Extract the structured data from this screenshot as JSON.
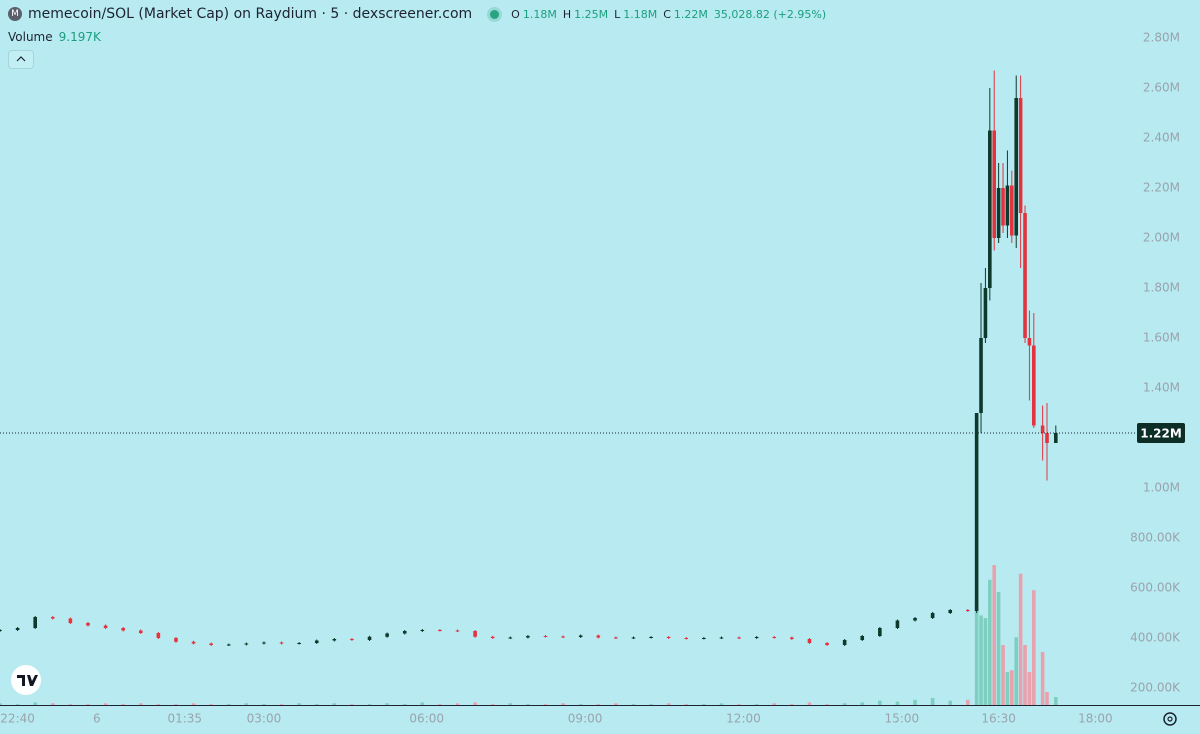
{
  "chart_data": {
    "type": "candlestick",
    "title": "memecoin/SOL (Market Cap) on Raydium · 5 · dexscreener.com",
    "icon_letter": "M",
    "legend": {
      "open_label": "O",
      "open": "1.18M",
      "high_label": "H",
      "high": "1.25M",
      "low_label": "L",
      "low": "1.18M",
      "close_label": "C",
      "close": "1.22M",
      "change": "35,028.82 (+2.95%)"
    },
    "volume_label": "Volume",
    "volume_value": "9.197K",
    "up_color": "#0d3a2c",
    "down_color": "#e2333f",
    "volume_up_color": "#7dcfbf",
    "volume_down_color": "#e7a2ad",
    "last_price": {
      "value": 1220000,
      "label": "1.22M"
    },
    "ylim": [
      132000,
      2952000
    ],
    "yticks": [
      {
        "value": 2800000,
        "label": "2.80M"
      },
      {
        "value": 2600000,
        "label": "2.60M"
      },
      {
        "value": 2400000,
        "label": "2.40M"
      },
      {
        "value": 2200000,
        "label": "2.20M"
      },
      {
        "value": 2000000,
        "label": "2.00M"
      },
      {
        "value": 1800000,
        "label": "1.80M"
      },
      {
        "value": 1600000,
        "label": "1.60M"
      },
      {
        "value": 1400000,
        "label": "1.40M"
      },
      {
        "value": 1000000,
        "label": "1.00M"
      },
      {
        "value": 800000,
        "label": "800.00K"
      },
      {
        "value": 600000,
        "label": "600.00K"
      },
      {
        "value": 400000,
        "label": "400.00K"
      },
      {
        "value": 200000,
        "label": "200.00K"
      }
    ],
    "y2lim": [
      0,
      230000
    ],
    "xlim": [
      0,
      258
    ],
    "xticks": [
      {
        "value": 4,
        "label": "22:40"
      },
      {
        "value": 22,
        "label": "6"
      },
      {
        "value": 42,
        "label": "01:35"
      },
      {
        "value": 60,
        "label": "03:00"
      },
      {
        "value": 97,
        "label": "06:00"
      },
      {
        "value": 133,
        "label": "09:00"
      },
      {
        "value": 169,
        "label": "12:00"
      },
      {
        "value": 205,
        "label": "15:00"
      },
      {
        "value": 227,
        "label": "16:30"
      },
      {
        "value": 249,
        "label": "18:00"
      }
    ],
    "x": [
      0,
      4,
      8,
      12,
      16,
      20,
      24,
      28,
      32,
      36,
      40,
      44,
      48,
      52,
      56,
      60,
      64,
      68,
      72,
      76,
      80,
      84,
      88,
      92,
      96,
      100,
      104,
      108,
      112,
      116,
      120,
      124,
      128,
      132,
      136,
      140,
      144,
      148,
      152,
      156,
      160,
      164,
      168,
      172,
      176,
      180,
      184,
      188,
      192,
      196,
      200,
      204,
      208,
      212,
      216,
      220,
      222,
      223,
      224,
      225,
      226,
      227,
      228,
      229,
      230,
      231,
      232,
      233,
      234,
      235,
      237,
      238,
      240
    ],
    "open": [
      428000,
      432000,
      440000,
      484000,
      478000,
      460000,
      450000,
      440000,
      430000,
      420000,
      400000,
      385000,
      378000,
      372000,
      374000,
      378000,
      382000,
      378000,
      380000,
      390000,
      396000,
      392000,
      405000,
      418000,
      428000,
      432000,
      430000,
      428000,
      405000,
      400000,
      402000,
      408000,
      406000,
      404000,
      410000,
      402000,
      400000,
      402000,
      404000,
      400000,
      398000,
      400000,
      402000,
      400000,
      404000,
      402000,
      396000,
      380000,
      372000,
      392000,
      408000,
      440000,
      470000,
      480000,
      500000,
      512000,
      508000,
      1300000,
      1600000,
      1800000,
      2430000,
      2000000,
      2200000,
      2050000,
      2210000,
      2010000,
      2560000,
      2100000,
      1600000,
      1570000,
      1250000,
      1220000,
      1180000
    ],
    "high": [
      436000,
      444000,
      488000,
      488000,
      482000,
      464000,
      454000,
      444000,
      434000,
      424000,
      404000,
      389000,
      382000,
      378000,
      382000,
      386000,
      386000,
      384000,
      394000,
      400000,
      400000,
      409000,
      422000,
      432000,
      436000,
      436000,
      434000,
      432000,
      409000,
      406000,
      412000,
      412000,
      410000,
      414000,
      414000,
      406000,
      406000,
      408000,
      408000,
      404000,
      404000,
      406000,
      406000,
      408000,
      408000,
      406000,
      400000,
      384000,
      396000,
      412000,
      444000,
      474000,
      484000,
      504000,
      516000,
      516000,
      1300000,
      1820000,
      1880000,
      2600000,
      2670000,
      2300000,
      2300000,
      2350000,
      2270000,
      2650000,
      2650000,
      2130000,
      1710000,
      1700000,
      1330000,
      1340000,
      1250000
    ],
    "low": [
      424000,
      428000,
      436000,
      474000,
      456000,
      446000,
      436000,
      426000,
      416000,
      396000,
      381000,
      374000,
      368000,
      368000,
      370000,
      374000,
      374000,
      374000,
      376000,
      386000,
      388000,
      388000,
      401000,
      414000,
      424000,
      426000,
      424000,
      401000,
      396000,
      396000,
      398000,
      402000,
      400000,
      400000,
      398000,
      396000,
      396000,
      398000,
      396000,
      394000,
      394000,
      396000,
      396000,
      396000,
      398000,
      392000,
      376000,
      368000,
      368000,
      388000,
      404000,
      436000,
      466000,
      476000,
      496000,
      504000,
      500000,
      1220000,
      1580000,
      1750000,
      1950000,
      1980000,
      2020000,
      2000000,
      1980000,
      1960000,
      1880000,
      1580000,
      1350000,
      1240000,
      1110000,
      1030000,
      1180000
    ],
    "close": [
      432000,
      440000,
      484000,
      478000,
      460000,
      450000,
      440000,
      430000,
      420000,
      400000,
      385000,
      378000,
      372000,
      374000,
      378000,
      382000,
      378000,
      380000,
      390000,
      396000,
      392000,
      405000,
      418000,
      428000,
      432000,
      430000,
      428000,
      405000,
      400000,
      402000,
      408000,
      406000,
      404000,
      410000,
      402000,
      400000,
      402000,
      404000,
      400000,
      398000,
      400000,
      402000,
      400000,
      404000,
      402000,
      396000,
      380000,
      372000,
      392000,
      408000,
      440000,
      470000,
      480000,
      500000,
      512000,
      508000,
      1300000,
      1600000,
      1800000,
      2430000,
      2000000,
      2200000,
      2050000,
      2210000,
      2010000,
      2560000,
      2100000,
      1600000,
      1570000,
      1250000,
      1220000,
      1180000,
      1220000
    ],
    "volume": [
      2000,
      1000,
      3000,
      2000,
      1000,
      1000,
      2000,
      1000,
      2000,
      1000,
      1000,
      2000,
      1000,
      1000,
      2000,
      1000,
      1000,
      2000,
      1000,
      2000,
      1000,
      1000,
      2000,
      1000,
      3000,
      1000,
      2000,
      3000,
      1000,
      2000,
      1000,
      1000,
      2000,
      1000,
      1000,
      2000,
      1000,
      1000,
      2000,
      1000,
      1000,
      2000,
      1000,
      1000,
      2000,
      1000,
      3000,
      1000,
      2000,
      3000,
      5000,
      4000,
      6000,
      8000,
      5000,
      6000,
      121000,
      103000,
      100000,
      144000,
      161000,
      130000,
      69000,
      38000,
      40000,
      78000,
      151000,
      69000,
      38000,
      132000,
      61000,
      15000,
      9197
    ]
  }
}
